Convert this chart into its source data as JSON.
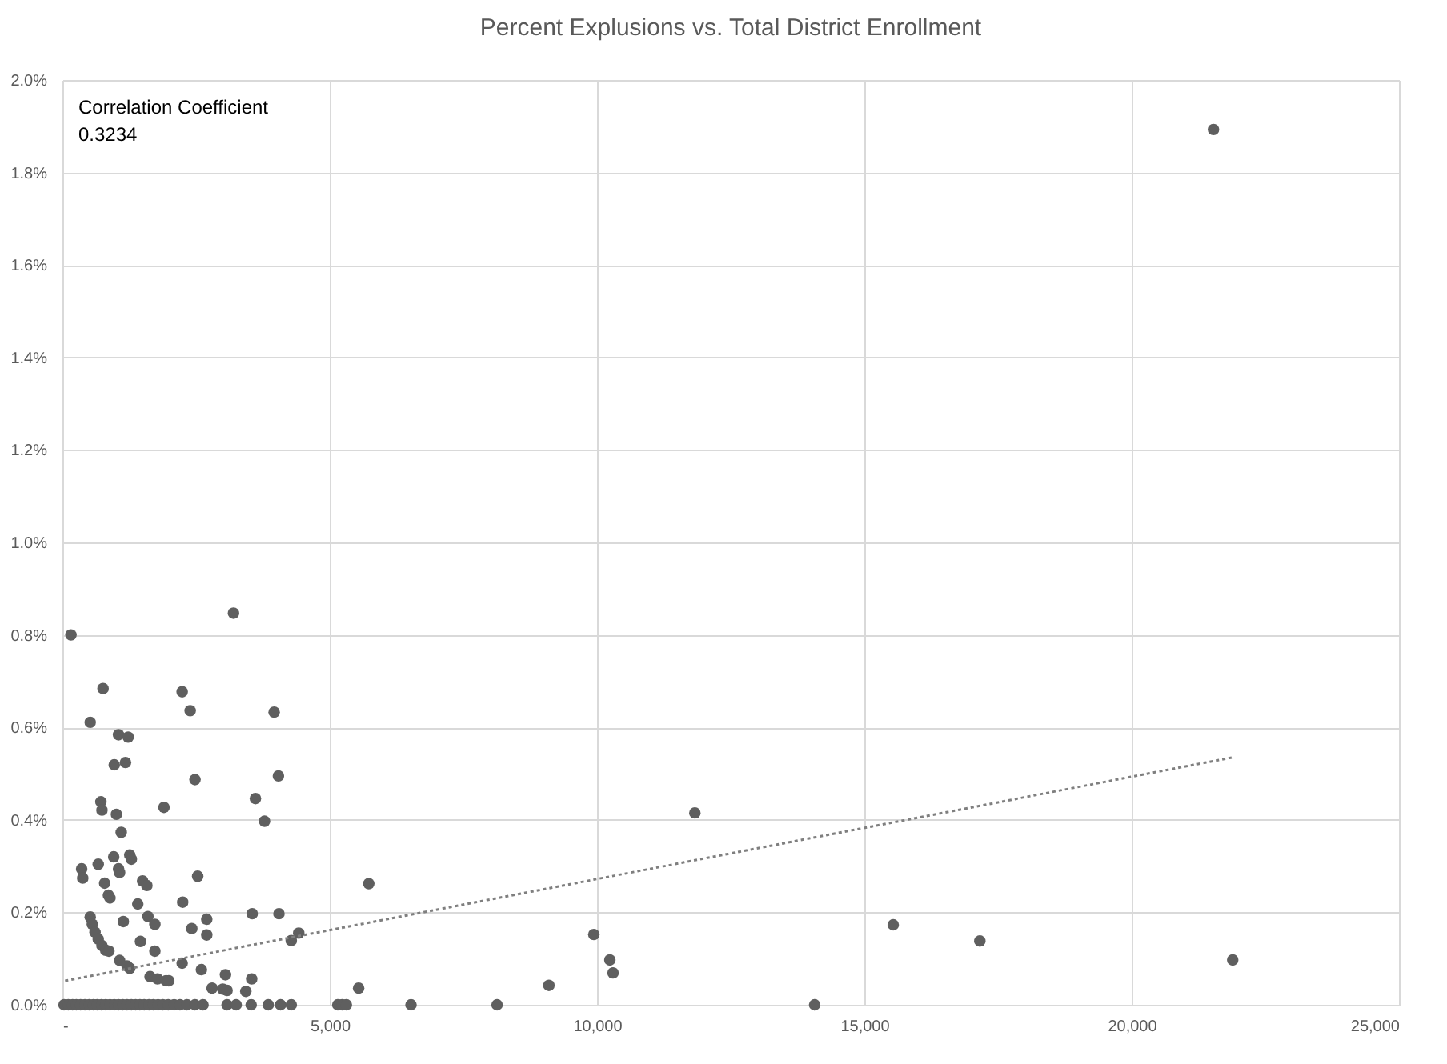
{
  "chart_data": {
    "type": "scatter",
    "title": "Percent Explusions vs. Total District Enrollment",
    "annotations": [
      "Correlation Coefficient",
      "0.3234"
    ],
    "xlim": [
      0,
      25000
    ],
    "xticks": [
      {
        "value": 0,
        "label": "-"
      },
      {
        "value": 5000,
        "label": "5,000"
      },
      {
        "value": 10000,
        "label": "10,000"
      },
      {
        "value": 15000,
        "label": "15,000"
      },
      {
        "value": 20000,
        "label": "20,000"
      },
      {
        "value": 25000,
        "label": "25,000"
      }
    ],
    "ylim": [
      0,
      2.0
    ],
    "yticks": [
      {
        "value": 0,
        "label": "0.0%"
      },
      {
        "value": 0.2,
        "label": "0.2%"
      },
      {
        "value": 0.4,
        "label": "0.4%"
      },
      {
        "value": 0.6,
        "label": "0.6%"
      },
      {
        "value": 0.8,
        "label": "0.8%"
      },
      {
        "value": 1.0,
        "label": "1.0%"
      },
      {
        "value": 1.2,
        "label": "1.2%"
      },
      {
        "value": 1.4,
        "label": "1.4%"
      },
      {
        "value": 1.6,
        "label": "1.6%"
      },
      {
        "value": 1.8,
        "label": "1.8%"
      },
      {
        "value": 2.0,
        "label": "2.0%"
      }
    ],
    "grid": true,
    "series": [
      {
        "type": "scatter",
        "color": "#5f5f5f",
        "marker": "circle",
        "x": [
          160,
          3200,
          760,
          520,
          2240,
          2390,
          3960,
          1050,
          1230,
          970,
          1180,
          2480,
          4040,
          720,
          740,
          1900,
          3610,
          3780,
          1010,
          1100,
          960,
          1260,
          1290,
          360,
          380,
          670,
          1050,
          1070,
          2530,
          1500,
          1580,
          790,
          860,
          890,
          1410,
          2250,
          520,
          560,
          610,
          670,
          740,
          810,
          870,
          1140,
          1600,
          1730,
          1460,
          1730,
          1070,
          1210,
          1260,
          2420,
          2700,
          2700,
          2240,
          2600,
          1640,
          1780,
          1940,
          1990,
          3050,
          2800,
          3000,
          3080,
          3540,
          3430,
          3550,
          4050,
          4280,
          4420,
          30,
          110,
          190,
          260,
          340,
          420,
          500,
          580,
          650,
          730,
          810,
          890,
          970,
          1050,
          1130,
          1210,
          1290,
          1370,
          1450,
          1530,
          1620,
          1700,
          1790,
          1880,
          1980,
          2090,
          2200,
          2330,
          2480,
          2630,
          3080,
          3250,
          3530,
          3850,
          4080,
          4280,
          5730,
          5540,
          5150,
          5230,
          5310,
          6520,
          8130,
          9100,
          9940,
          10240,
          10300,
          11830,
          14070,
          15540,
          17160,
          21530,
          21890
        ],
        "values": [
          0.8,
          0.847,
          0.684,
          0.611,
          0.677,
          0.636,
          0.633,
          0.584,
          0.579,
          0.519,
          0.524,
          0.487,
          0.495,
          0.439,
          0.421,
          0.427,
          0.446,
          0.397,
          0.412,
          0.373,
          0.32,
          0.324,
          0.315,
          0.294,
          0.274,
          0.304,
          0.294,
          0.286,
          0.278,
          0.268,
          0.258,
          0.263,
          0.237,
          0.231,
          0.218,
          0.222,
          0.19,
          0.174,
          0.157,
          0.142,
          0.128,
          0.118,
          0.116,
          0.18,
          0.191,
          0.174,
          0.137,
          0.116,
          0.096,
          0.084,
          0.079,
          0.165,
          0.185,
          0.151,
          0.09,
          0.076,
          0.061,
          0.056,
          0.052,
          0.052,
          0.065,
          0.036,
          0.034,
          0.031,
          0.056,
          0.029,
          0.197,
          0.197,
          0.139,
          0.155,
          0,
          0,
          0,
          0,
          0,
          0,
          0,
          0,
          0,
          0,
          0,
          0,
          0,
          0,
          0,
          0,
          0,
          0,
          0,
          0,
          0,
          0,
          0,
          0,
          0,
          0,
          0,
          0,
          0,
          0,
          0,
          0,
          0,
          0,
          0,
          0,
          0.262,
          0.036,
          0,
          0,
          0,
          0,
          0,
          0.042,
          0.152,
          0.097,
          0.069,
          0.415,
          0,
          0.173,
          0.138,
          1.893,
          0.097
        ]
      },
      {
        "type": "line",
        "color": "#7f7f7f",
        "line_style": "dotted",
        "x": [
          50,
          21890
        ],
        "values": [
          0.052,
          0.535
        ]
      }
    ]
  }
}
